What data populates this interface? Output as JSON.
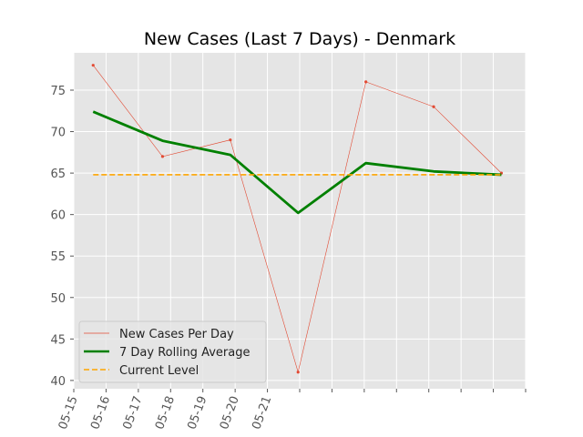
{
  "chart_data": {
    "type": "line",
    "title": "New Cases (Last 7 Days) - Denmark",
    "xlabel": "",
    "ylabel": "",
    "x_tick_labels": [
      "05-15",
      "05-16",
      "05-17",
      "05-18",
      "05-19",
      "05-20",
      "05-21",
      "",
      "",
      "",
      "",
      "",
      "",
      "",
      ""
    ],
    "y_ticks": [
      40,
      45,
      50,
      55,
      60,
      65,
      70,
      75
    ],
    "ylim": [
      39,
      79.5
    ],
    "grid": true,
    "legend_position": "lower-left",
    "series": [
      {
        "name": "New Cases Per Day",
        "color": "#e24a33",
        "style": "thin-line-with-markers",
        "points": [
          {
            "x": 0.6,
            "y": 78
          },
          {
            "x": 2.75,
            "y": 67
          },
          {
            "x": 4.85,
            "y": 69
          },
          {
            "x": 6.95,
            "y": 41
          },
          {
            "x": 9.05,
            "y": 76
          },
          {
            "x": 11.15,
            "y": 73
          },
          {
            "x": 13.25,
            "y": 65
          }
        ]
      },
      {
        "name": "7 Day Rolling Average",
        "color": "#008000",
        "style": "thick-line",
        "points": [
          {
            "x": 0.6,
            "y": 72.4
          },
          {
            "x": 2.75,
            "y": 68.9
          },
          {
            "x": 4.85,
            "y": 67.2
          },
          {
            "x": 6.95,
            "y": 60.2
          },
          {
            "x": 9.05,
            "y": 66.2
          },
          {
            "x": 11.15,
            "y": 65.2
          },
          {
            "x": 13.25,
            "y": 64.8
          }
        ]
      },
      {
        "name": "Current Level",
        "color": "#ffa500",
        "style": "dashed-line",
        "points": [
          {
            "x": 0.6,
            "y": 64.8
          },
          {
            "x": 13.25,
            "y": 64.8
          }
        ]
      }
    ]
  }
}
